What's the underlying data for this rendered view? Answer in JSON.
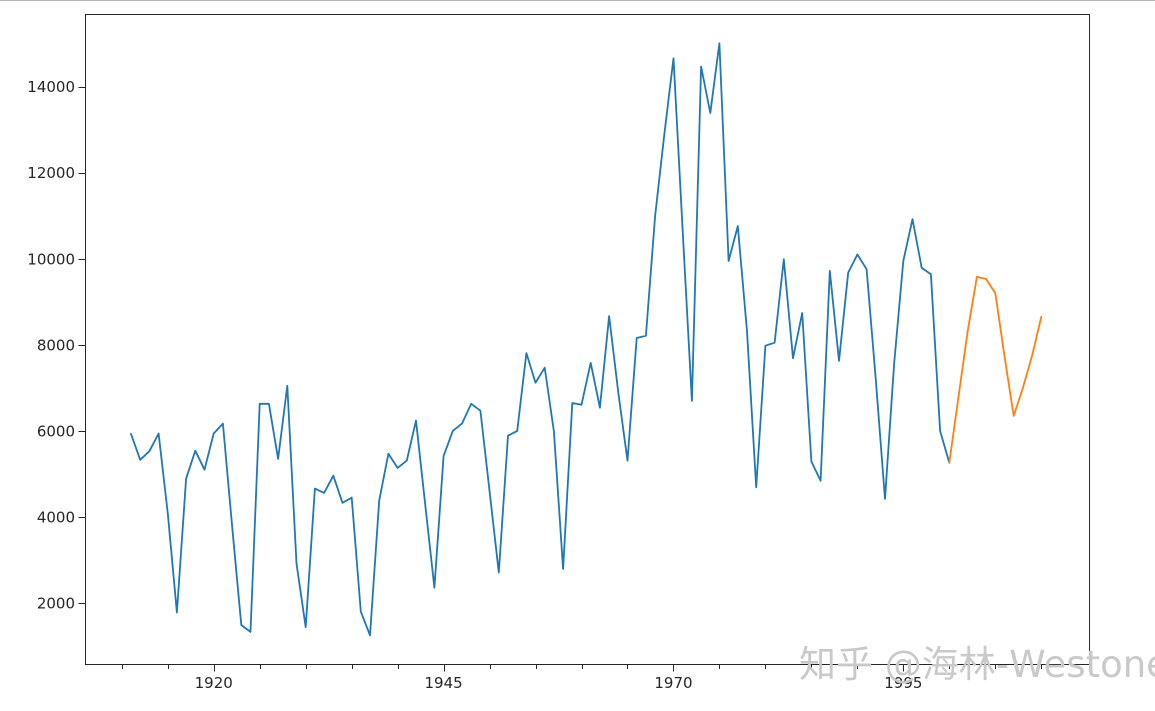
{
  "watermark": {
    "text": "知乎 @海林-Westone"
  },
  "colors": {
    "observed_line": "#1f77b4",
    "forecast_line": "#ff7f0e",
    "axis": "#262626",
    "tick_label": "#262626",
    "watermark": "#c9c9c9",
    "background": "#ffffff"
  },
  "chart_data": {
    "type": "line",
    "title": "",
    "xlabel": "",
    "ylabel": "",
    "grid": false,
    "legend": null,
    "xlim": [
      1906,
      2015.3
    ],
    "ylim": [
      570,
      15700
    ],
    "x_ticks_labeled": [
      1920,
      1945,
      1970,
      1995
    ],
    "x_ticks_minor": {
      "start": 1910,
      "end": 2010,
      "step": 5
    },
    "y_ticks": [
      2000,
      4000,
      6000,
      8000,
      10000,
      12000,
      14000
    ],
    "tick_label_font_px": 15,
    "series": [
      {
        "name": "observed",
        "color": "#1f77b4",
        "x_start": 1911,
        "x_step": 1,
        "values": [
          5940,
          5340,
          5540,
          5950,
          4090,
          1790,
          4900,
          5550,
          5110,
          5950,
          6180,
          3800,
          1500,
          1340,
          6640,
          6640,
          5360,
          7060,
          2930,
          1450,
          4670,
          4570,
          4970,
          4340,
          4460,
          1810,
          1260,
          4390,
          5480,
          5150,
          5320,
          6250,
          4300,
          2370,
          5430,
          6010,
          6180,
          6640,
          6480,
          4600,
          2720,
          5900,
          6010,
          7820,
          7130,
          7480,
          6000,
          2800,
          6660,
          6620,
          7590,
          6550,
          8680,
          6900,
          5320,
          8170,
          8220,
          11000,
          12900,
          14670,
          10650,
          6710,
          14480,
          13400,
          15020,
          9960,
          10770,
          8330,
          4700,
          7990,
          8060,
          10000,
          7700,
          8750,
          5300,
          4850,
          9730,
          7640,
          9690,
          10110,
          9770,
          7200,
          4430,
          7560,
          9960,
          10930,
          9800,
          9650,
          6010,
          5270
        ]
      },
      {
        "name": "forecast",
        "color": "#ff7f0e",
        "x_start": 2000,
        "x_step": 1,
        "values": [
          5270,
          6800,
          8330,
          9590,
          9540,
          9210,
          7750,
          6360,
          7010,
          7760,
          8660
        ]
      }
    ]
  }
}
